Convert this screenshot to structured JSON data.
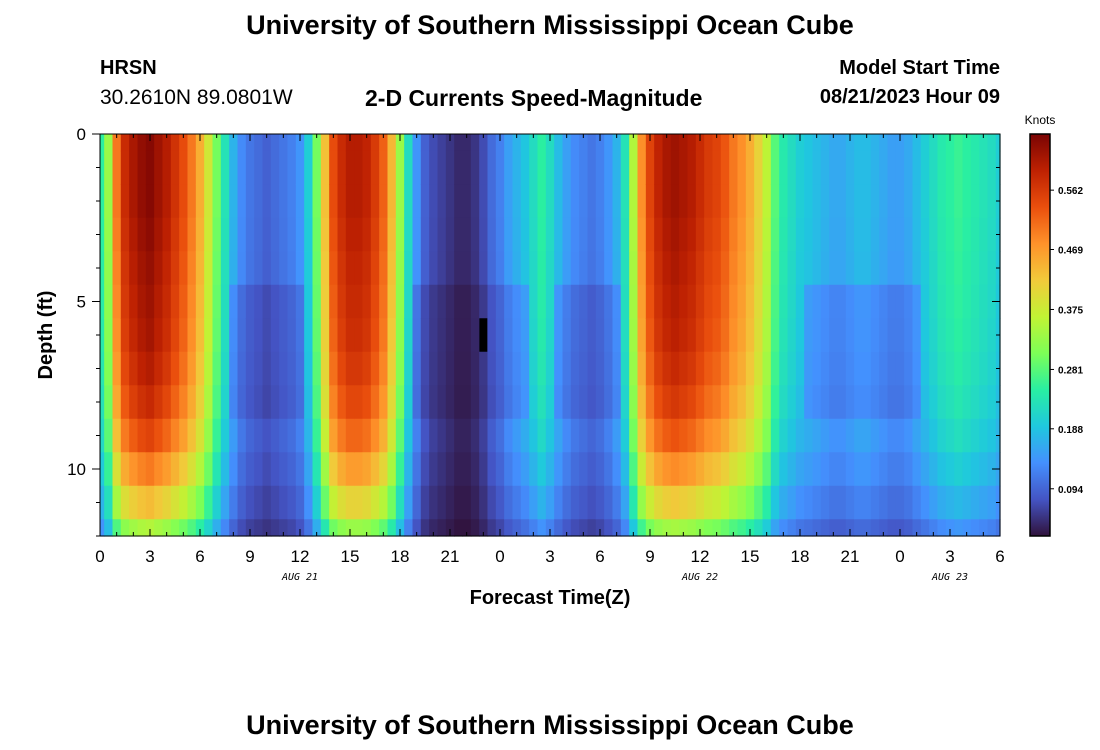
{
  "header": {
    "title": "University of Southern Mississippi Ocean Cube",
    "station": "HRSN",
    "coordinates": "30.2610N  89.0801W",
    "subtitle": "2-D Currents Speed-Magnitude",
    "model_start_label": "Model Start Time",
    "model_start_value": "08/21/2023 Hour 09"
  },
  "footer": {
    "title": "University of Southern Mississippi Ocean Cube"
  },
  "colors": {
    "palette": [
      "#30123b",
      "#4454c4",
      "#4490fe",
      "#1fc8de",
      "#29efa2",
      "#7dff56",
      "#c1f334",
      "#f1ca3a",
      "#fe922a",
      "#ea4f0d",
      "#be2102",
      "#7a0403"
    ]
  },
  "chart_data": {
    "type": "heatmap",
    "xlabel": "Forecast Time(Z)",
    "ylabel": "Depth (ft)",
    "colorbar_label": "Knots",
    "x_range_hours": [
      0,
      54
    ],
    "x_hours": [
      0,
      0.5,
      1,
      1.5,
      2,
      2.5,
      3,
      3.5,
      4,
      4.5,
      5,
      5.5,
      6,
      6.5,
      7,
      7.5,
      8,
      8.5,
      9,
      9.5,
      10,
      10.5,
      11,
      11.5,
      12,
      12.5,
      13,
      13.5,
      14,
      14.5,
      15,
      15.5,
      16,
      16.5,
      17,
      17.5,
      18,
      18.5,
      19,
      19.5,
      20,
      20.5,
      21,
      21.5,
      22,
      22.5,
      23,
      23.5,
      24,
      24.5,
      25,
      25.5,
      26,
      26.5,
      27,
      27.5,
      28,
      28.5,
      29,
      29.5,
      30,
      30.5,
      31,
      31.5,
      32,
      32.5,
      33,
      33.5,
      34,
      34.5,
      35,
      35.5,
      36,
      36.5,
      37,
      37.5,
      38,
      38.5,
      39,
      39.5,
      40,
      40.5,
      41,
      41.5,
      42,
      42.5,
      43,
      43.5,
      44,
      44.5,
      45,
      45.5,
      46,
      46.5,
      47,
      47.5,
      48,
      48.5,
      49,
      49.5,
      50,
      50.5,
      51,
      51.5,
      52,
      52.5,
      53,
      53.5,
      54
    ],
    "x_tick_labels": [
      "0",
      "3",
      "6",
      "9",
      "12",
      "15",
      "18",
      "21",
      "0",
      "3",
      "6",
      "9",
      "12",
      "15",
      "18",
      "21",
      "0",
      "3",
      "6"
    ],
    "date_labels": [
      {
        "text": "AUG 21",
        "hour": 12
      },
      {
        "text": "AUG 22",
        "hour": 36
      },
      {
        "text": "AUG 23",
        "hour": 51
      }
    ],
    "ylim": [
      0,
      12
    ],
    "y_ticks": [
      0,
      5,
      10
    ],
    "depth_rows": [
      0,
      1,
      2,
      3,
      4,
      5,
      6,
      7,
      8,
      9,
      10,
      11,
      12
    ],
    "colorbar_ticks": [
      "0.094",
      "0.188",
      "0.281",
      "0.375",
      "0.469",
      "0.562"
    ],
    "colorbar_tick_values": [
      0.094,
      0.188,
      0.281,
      0.375,
      0.469,
      0.562
    ],
    "colorbar_range": [
      0.02,
      0.65
    ],
    "surface_speed_knots": [
      0.25,
      0.33,
      0.5,
      0.58,
      0.61,
      0.63,
      0.64,
      0.62,
      0.6,
      0.57,
      0.54,
      0.5,
      0.45,
      0.38,
      0.3,
      0.23,
      0.17,
      0.13,
      0.11,
      0.1,
      0.09,
      0.1,
      0.11,
      0.12,
      0.14,
      0.2,
      0.3,
      0.43,
      0.54,
      0.58,
      0.6,
      0.6,
      0.59,
      0.56,
      0.52,
      0.44,
      0.33,
      0.22,
      0.14,
      0.09,
      0.07,
      0.06,
      0.05,
      0.04,
      0.04,
      0.05,
      0.07,
      0.1,
      0.12,
      0.15,
      0.17,
      0.19,
      0.22,
      0.25,
      0.22,
      0.18,
      0.15,
      0.13,
      0.12,
      0.11,
      0.12,
      0.14,
      0.17,
      0.23,
      0.35,
      0.48,
      0.55,
      0.59,
      0.61,
      0.62,
      0.61,
      0.6,
      0.58,
      0.56,
      0.55,
      0.53,
      0.5,
      0.48,
      0.45,
      0.41,
      0.36,
      0.28,
      0.24,
      0.22,
      0.2,
      0.19,
      0.18,
      0.17,
      0.16,
      0.16,
      0.17,
      0.18,
      0.18,
      0.17,
      0.16,
      0.15,
      0.15,
      0.16,
      0.18,
      0.2,
      0.22,
      0.24,
      0.25,
      0.26,
      0.25,
      0.24,
      0.23,
      0.22,
      0.2
    ],
    "depth_factor": [
      1,
      1,
      1,
      0.99,
      0.98,
      0.97,
      0.96,
      0.94,
      0.91,
      0.86,
      0.78,
      0.68,
      0.55
    ],
    "blank_cell": {
      "hour": 23.0,
      "depth_range": [
        5.5,
        6.5
      ]
    }
  }
}
